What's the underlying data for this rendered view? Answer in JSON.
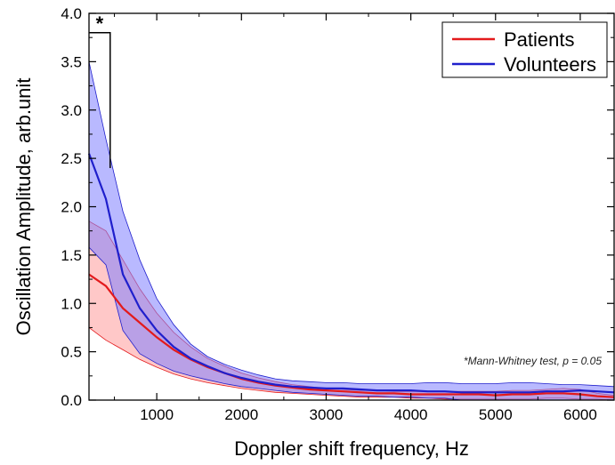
{
  "chart_data": {
    "type": "line",
    "title": "",
    "xlabel": "Doppler shift frequency, Hz",
    "ylabel": "Oscillation Amplitude, arb.unit",
    "xlim": [
      200,
      6400
    ],
    "ylim": [
      0,
      4.0
    ],
    "x_ticks": [
      1000,
      2000,
      3000,
      4000,
      5000,
      6000
    ],
    "x_tick_labels": [
      "1000",
      "2000",
      "3000",
      "4000",
      "5000",
      "6000"
    ],
    "y_ticks": [
      0,
      0.5,
      1.0,
      1.5,
      2.0,
      2.5,
      3.0,
      3.5,
      4.0
    ],
    "y_tick_labels": [
      "0.0",
      "0.5",
      "1.0",
      "1.5",
      "2.0",
      "2.5",
      "3.0",
      "3.5",
      "4.0"
    ],
    "grid": false,
    "legend_position": "top-right",
    "x": [
      200,
      400,
      600,
      800,
      1000,
      1200,
      1400,
      1600,
      1800,
      2000,
      2200,
      2400,
      2600,
      2800,
      3000,
      3200,
      3400,
      3600,
      3800,
      4000,
      4200,
      4400,
      4600,
      4800,
      5000,
      5200,
      5400,
      5600,
      5800,
      6000,
      6200,
      6400
    ],
    "series": [
      {
        "name": "Patients",
        "color": "#e31a1c",
        "band_color": "#ff9a9a",
        "mean": [
          1.3,
          1.18,
          0.95,
          0.8,
          0.65,
          0.52,
          0.42,
          0.34,
          0.28,
          0.22,
          0.18,
          0.15,
          0.13,
          0.11,
          0.1,
          0.09,
          0.08,
          0.07,
          0.07,
          0.06,
          0.06,
          0.06,
          0.06,
          0.06,
          0.05,
          0.06,
          0.06,
          0.07,
          0.07,
          0.06,
          0.04,
          0.03
        ],
        "upper": [
          1.85,
          1.75,
          1.45,
          1.15,
          0.9,
          0.7,
          0.55,
          0.43,
          0.35,
          0.28,
          0.23,
          0.19,
          0.16,
          0.14,
          0.12,
          0.11,
          0.1,
          0.1,
          0.09,
          0.09,
          0.09,
          0.09,
          0.09,
          0.09,
          0.09,
          0.1,
          0.1,
          0.11,
          0.12,
          0.11,
          0.07,
          0.05
        ],
        "lower": [
          0.75,
          0.62,
          0.52,
          0.42,
          0.34,
          0.27,
          0.22,
          0.18,
          0.15,
          0.12,
          0.1,
          0.08,
          0.07,
          0.06,
          0.05,
          0.04,
          0.03,
          0.03,
          0.03,
          0.02,
          0.02,
          0.01,
          0.01,
          0.01,
          0.01,
          0.01,
          0.01,
          0.02,
          0.02,
          0.01,
          0.01,
          0.0
        ]
      },
      {
        "name": "Volunteers",
        "color": "#1f1fcc",
        "band_color": "#7f7fff",
        "mean": [
          2.55,
          2.08,
          1.3,
          0.95,
          0.72,
          0.55,
          0.43,
          0.35,
          0.28,
          0.23,
          0.19,
          0.16,
          0.14,
          0.13,
          0.12,
          0.12,
          0.11,
          0.1,
          0.1,
          0.1,
          0.09,
          0.09,
          0.08,
          0.08,
          0.08,
          0.08,
          0.08,
          0.09,
          0.09,
          0.1,
          0.09,
          0.08
        ],
        "upper": [
          3.5,
          2.7,
          1.95,
          1.45,
          1.05,
          0.78,
          0.58,
          0.45,
          0.37,
          0.31,
          0.26,
          0.22,
          0.2,
          0.19,
          0.18,
          0.18,
          0.17,
          0.17,
          0.17,
          0.17,
          0.18,
          0.18,
          0.17,
          0.17,
          0.17,
          0.18,
          0.18,
          0.17,
          0.16,
          0.16,
          0.15,
          0.14
        ],
        "lower": [
          1.58,
          1.4,
          0.72,
          0.48,
          0.38,
          0.3,
          0.25,
          0.21,
          0.17,
          0.14,
          0.12,
          0.1,
          0.08,
          0.07,
          0.06,
          0.05,
          0.04,
          0.04,
          0.03,
          0.03,
          0.02,
          0.02,
          0.0,
          0.0,
          0.0,
          0.0,
          0.0,
          0.0,
          0.0,
          0.0,
          0.0,
          0.0
        ]
      }
    ],
    "significance_marker": {
      "symbol": "*",
      "x_range": [
        200,
        450
      ],
      "y_top": 3.8,
      "y_bottom": 2.4
    },
    "annotation": "*Mann-Whitney test, p = 0.05"
  }
}
